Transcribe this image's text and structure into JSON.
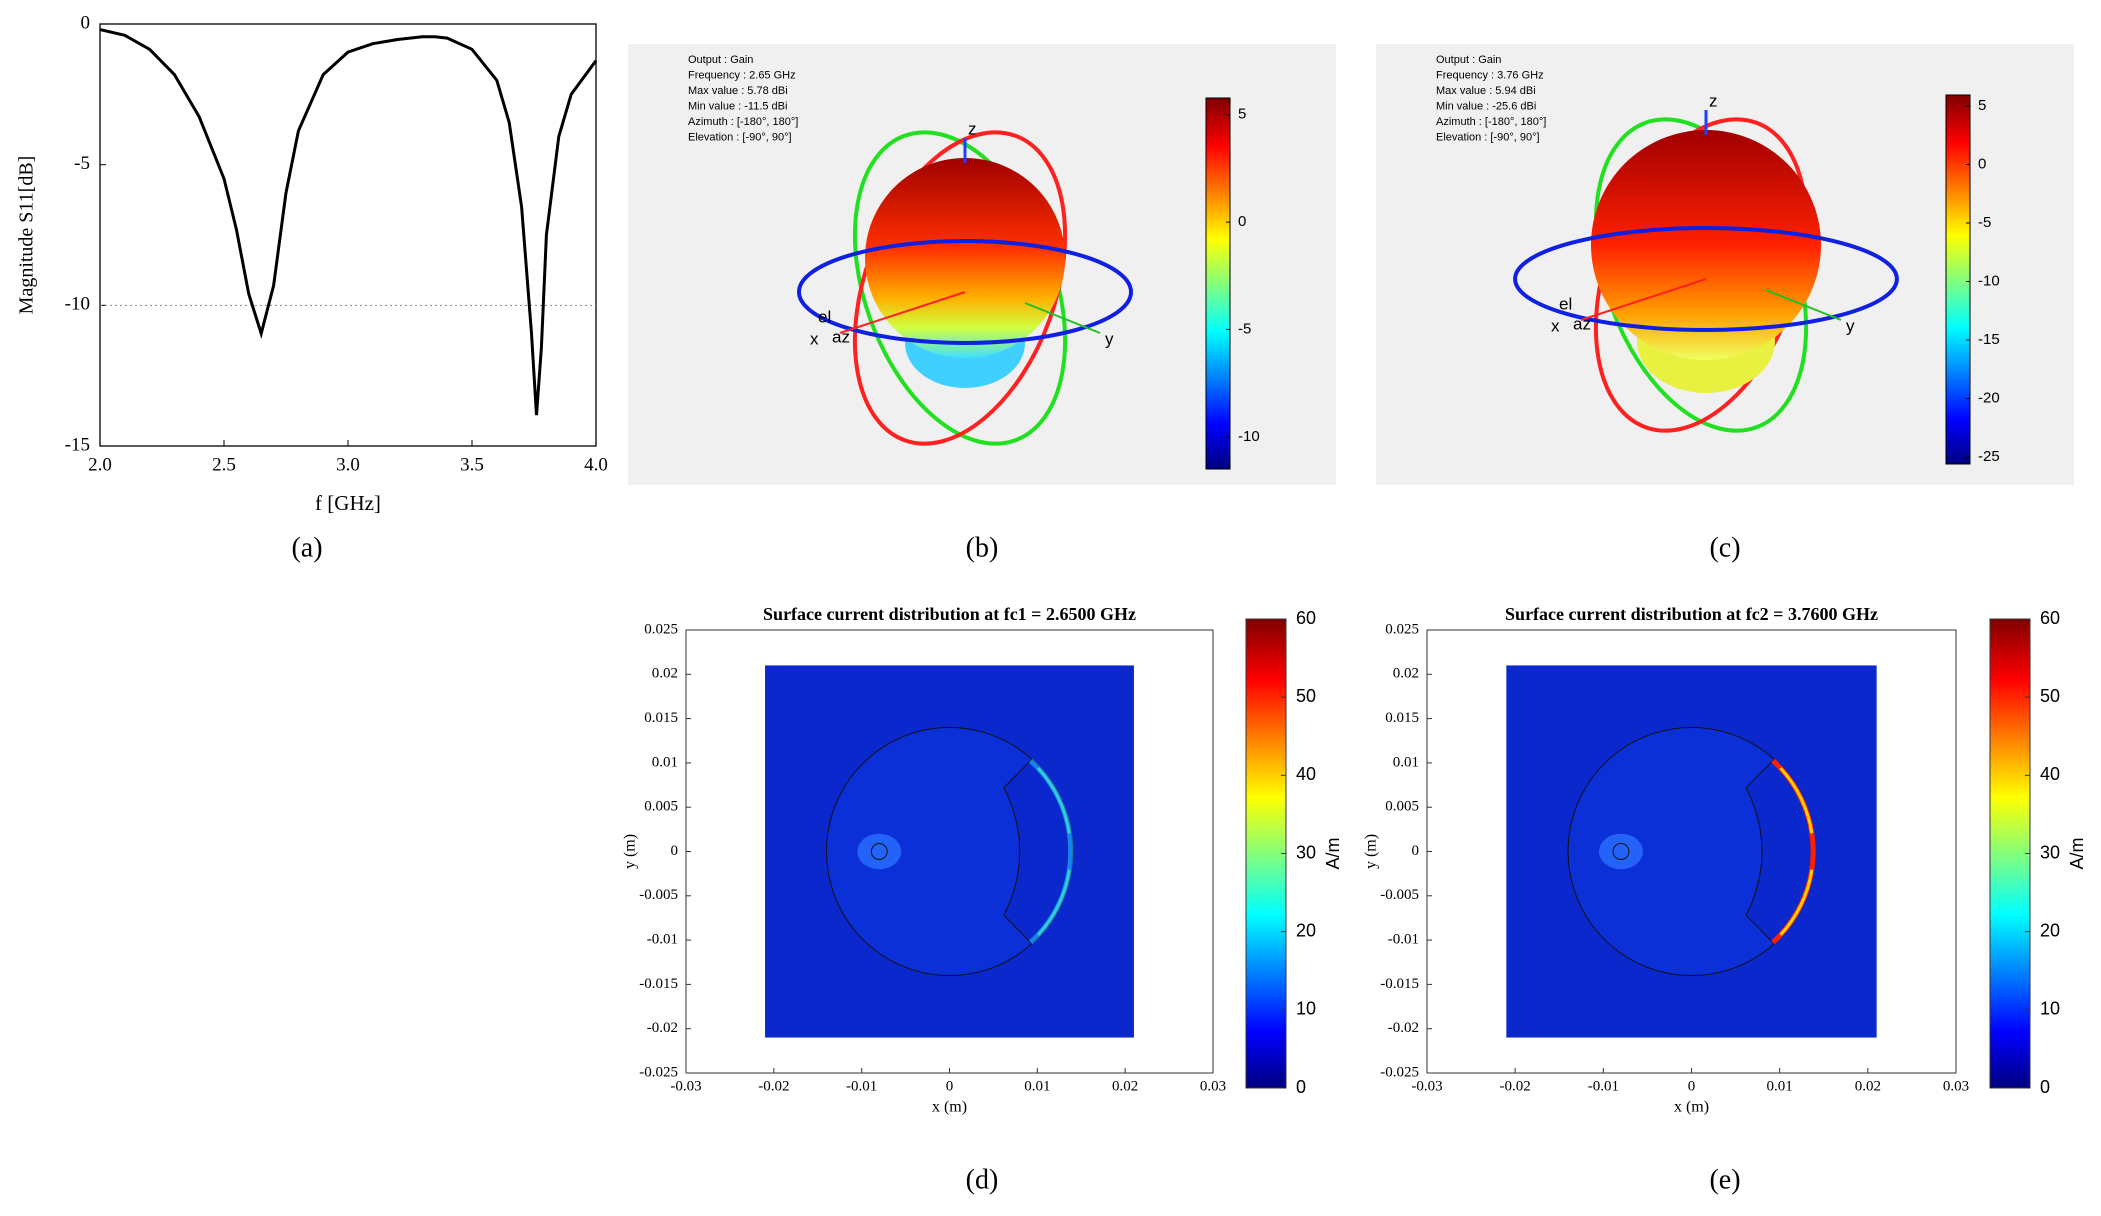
{
  "chart_data": [
    {
      "type": "line",
      "panel_label": "(a)",
      "xlabel": "f [GHz]",
      "ylabel": "Magnitude S11[dB]",
      "x": [
        2.0,
        2.1,
        2.2,
        2.3,
        2.4,
        2.5,
        2.55,
        2.6,
        2.65,
        2.7,
        2.75,
        2.8,
        2.9,
        3.0,
        3.1,
        3.2,
        3.3,
        3.35,
        3.4,
        3.5,
        3.6,
        3.65,
        3.7,
        3.74,
        3.76,
        3.78,
        3.8,
        3.85,
        3.9,
        4.0
      ],
      "values": [
        -0.2,
        -0.4,
        -0.9,
        -1.8,
        -3.3,
        -5.5,
        -7.3,
        -9.6,
        -11.0,
        -9.3,
        -6.0,
        -3.8,
        -1.8,
        -1.0,
        -0.7,
        -0.55,
        -0.45,
        -0.45,
        -0.5,
        -0.9,
        -2.0,
        -3.5,
        -6.5,
        -11.0,
        -13.9,
        -11.5,
        -7.5,
        -4.0,
        -2.5,
        -1.3
      ],
      "color": "#000000",
      "hline": -10,
      "xlim": [
        2.0,
        4.0
      ],
      "xticks": [
        {
          "value": 2,
          "label": "2.0"
        },
        {
          "value": 2.5,
          "label": "2.5"
        },
        {
          "value": 3,
          "label": "3.0"
        },
        {
          "value": 3.5,
          "label": "3.5"
        },
        {
          "value": 4,
          "label": "4.0"
        }
      ],
      "ylim": [
        -15,
        0
      ],
      "yticks": [
        0,
        -5,
        -10,
        -15
      ]
    },
    {
      "type": "pattern3d",
      "panel_label": "(b)",
      "info": [
        "Output : Gain",
        "Frequency : 2.65 GHz",
        "Max value : 5.78 dBi",
        "Min value : -11.5 dBi",
        "Azimuth : [-180°, 180°]",
        "Elevation : [-90°, 90°]"
      ],
      "axis_labels": [
        "z",
        "x",
        "y",
        "el",
        "az"
      ],
      "ylim": [
        -11.5,
        5.78
      ],
      "yticks": [
        5,
        0,
        -5,
        -10
      ]
    },
    {
      "type": "pattern3d",
      "panel_label": "(c)",
      "info": [
        "Output : Gain",
        "Frequency : 3.76 GHz",
        "Max value : 5.94 dBi",
        "Min value : -25.6 dBi",
        "Azimuth : [-180°, 180°]",
        "Elevation : [-90°, 90°]"
      ],
      "axis_labels": [
        "z",
        "x",
        "y",
        "el",
        "az"
      ],
      "ylim": [
        -25.6,
        5.94
      ],
      "yticks": [
        5,
        0,
        -5,
        -10,
        -15,
        -20,
        -25
      ]
    },
    {
      "type": "heatmap",
      "panel_label": "(d)",
      "title": "Surface current distribution at fc1 = 2.6500 GHz",
      "xlabel": "x (m)",
      "ylabel": "y (m)",
      "xlim": [
        -0.03,
        0.03
      ],
      "xticks": [
        -0.03,
        -0.02,
        -0.01,
        0,
        0.01,
        0.02,
        0.03
      ],
      "ylim": [
        -0.025,
        0.025
      ],
      "yticks": [
        -0.025,
        -0.02,
        -0.015,
        -0.01,
        -0.005,
        0,
        0.005,
        0.01,
        0.015,
        0.02,
        0.025
      ],
      "colorbar": {
        "lim": [
          0,
          60
        ],
        "ticks": [
          0,
          10,
          20,
          30,
          40,
          50,
          60
        ],
        "label": "A/m"
      }
    },
    {
      "type": "heatmap",
      "panel_label": "(e)",
      "title": "Surface current distribution at fc2 = 3.7600 GHz",
      "xlabel": "x (m)",
      "ylabel": "y (m)",
      "xlim": [
        -0.03,
        0.03
      ],
      "xticks": [
        -0.03,
        -0.02,
        -0.01,
        0,
        0.01,
        0.02,
        0.03
      ],
      "ylim": [
        -0.025,
        0.025
      ],
      "yticks": [
        -0.025,
        -0.02,
        -0.015,
        -0.01,
        -0.005,
        0,
        0.005,
        0.01,
        0.015,
        0.02,
        0.025
      ],
      "colorbar": {
        "lim": [
          0,
          60
        ],
        "ticks": [
          0,
          10,
          20,
          30,
          40,
          50,
          60
        ],
        "label": "A/m"
      }
    }
  ]
}
